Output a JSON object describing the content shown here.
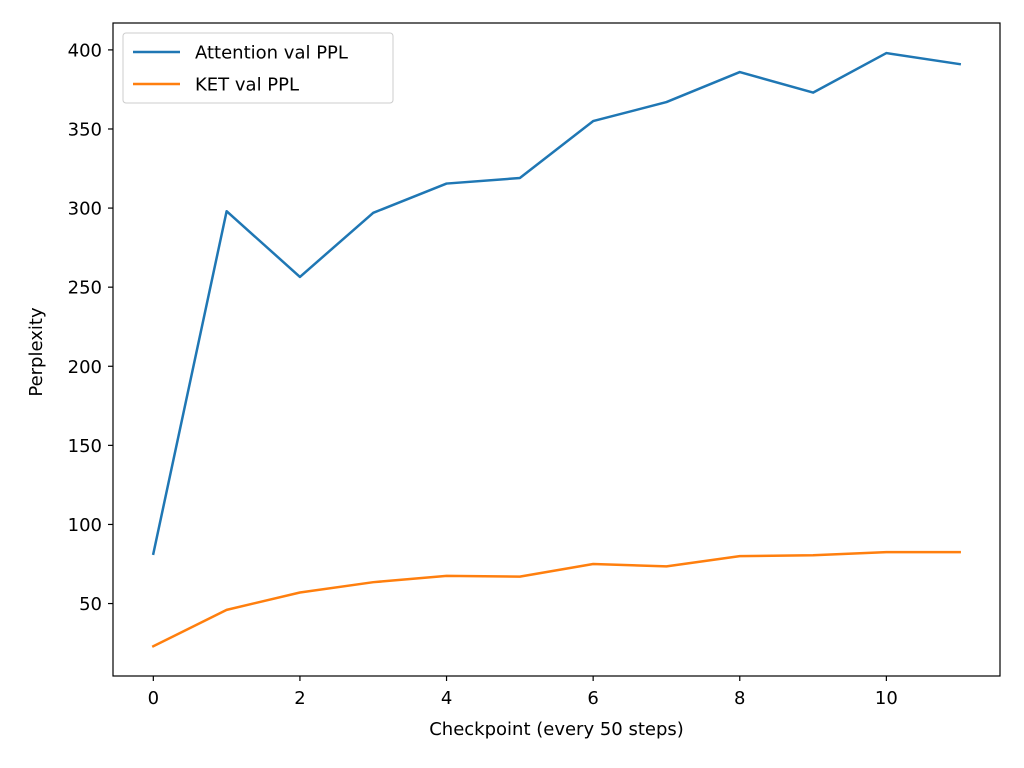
{
  "chart_data": {
    "type": "line",
    "title": "",
    "xlabel": "Checkpoint (every 50 steps)",
    "ylabel": "Perplexity",
    "x": [
      0,
      1,
      2,
      3,
      4,
      5,
      6,
      7,
      8,
      9,
      10,
      11
    ],
    "xlim": [
      -0.55,
      11.55
    ],
    "ylim": [
      4.2,
      417.0
    ],
    "x_ticks": [
      0,
      2,
      4,
      6,
      8,
      10
    ],
    "y_ticks": [
      50,
      100,
      150,
      200,
      250,
      300,
      350,
      400
    ],
    "grid": false,
    "legend_position": "top-left",
    "series": [
      {
        "name": "Attention val PPL",
        "color": "#1f77b4",
        "values": [
          81.5,
          298,
          256.5,
          297,
          315.5,
          319,
          355,
          367,
          386,
          373,
          398,
          391
        ]
      },
      {
        "name": "KET val PPL",
        "color": "#ff7f0e",
        "values": [
          23,
          46,
          57,
          63.5,
          67.5,
          67,
          75,
          73.5,
          80,
          80.5,
          82.5,
          82.5
        ]
      }
    ]
  }
}
